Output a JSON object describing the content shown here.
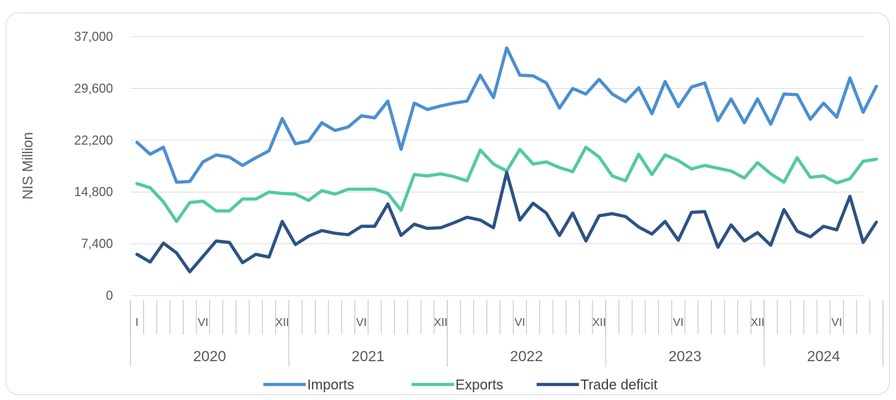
{
  "chart_data": {
    "type": "line",
    "ylabel": "NIS Million",
    "ylim": [
      0,
      37000
    ],
    "yticks": [
      "0",
      "7,400",
      "14,800",
      "22,200",
      "29,600",
      "37,000"
    ],
    "ytick_values": [
      0,
      7400,
      14800,
      22200,
      29600,
      37000
    ],
    "grid": "horizontal",
    "legend_position": "bottom",
    "years": [
      "2020",
      "2021",
      "2022",
      "2023",
      "2024"
    ],
    "months_per_year": [
      12,
      12,
      12,
      12,
      9
    ],
    "month_tick_labels": [
      {
        "index": 0,
        "label": "I"
      },
      {
        "index": 5,
        "label": "VI"
      },
      {
        "index": 11,
        "label": "XII"
      },
      {
        "index": 17,
        "label": "VI"
      },
      {
        "index": 23,
        "label": "XII"
      },
      {
        "index": 29,
        "label": "VI"
      },
      {
        "index": 35,
        "label": "XII"
      },
      {
        "index": 41,
        "label": "VI"
      },
      {
        "index": 47,
        "label": "XII"
      },
      {
        "index": 53,
        "label": "VI"
      }
    ],
    "series": [
      {
        "name": "Imports",
        "color": "#4a8fd0",
        "values": [
          21900,
          20200,
          21200,
          16200,
          16300,
          19100,
          20100,
          19800,
          18600,
          19700,
          20700,
          25300,
          21700,
          22100,
          24700,
          23600,
          24100,
          25700,
          25400,
          27800,
          20900,
          27500,
          26600,
          27100,
          27500,
          27800,
          31500,
          28300,
          35400,
          31500,
          31400,
          30400,
          26800,
          29600,
          28800,
          30900,
          28800,
          27700,
          29700,
          26000,
          30600,
          27000,
          29800,
          30400,
          25000,
          28100,
          24700,
          28100,
          24500,
          28800,
          28700,
          25200,
          27500,
          25500,
          31100,
          26200,
          29900
        ]
      },
      {
        "name": "Exports",
        "color": "#52c9a1",
        "values": [
          16000,
          15400,
          13400,
          10600,
          13300,
          13500,
          12100,
          12100,
          13800,
          13800,
          14800,
          14600,
          14500,
          13600,
          15000,
          14500,
          15200,
          15200,
          15200,
          14600,
          12200,
          17300,
          17100,
          17400,
          17000,
          16400,
          20800,
          18800,
          17800,
          20900,
          18800,
          19100,
          18300,
          17700,
          21200,
          19800,
          17100,
          16400,
          20200,
          17300,
          20100,
          19300,
          18100,
          18600,
          18200,
          17800,
          16800,
          19000,
          17400,
          16200,
          19700,
          16900,
          17100,
          16100,
          16700,
          19200,
          19500
        ]
      },
      {
        "name": "Trade deficit",
        "color": "#2c5283",
        "values": [
          5900,
          4800,
          7500,
          6100,
          3400,
          5600,
          7800,
          7600,
          4700,
          5900,
          5500,
          10600,
          7300,
          8500,
          9300,
          8900,
          8700,
          9900,
          9900,
          13100,
          8600,
          10200,
          9600,
          9700,
          10400,
          11200,
          10800,
          9700,
          17600,
          10800,
          13200,
          11800,
          8600,
          11800,
          7800,
          11400,
          11700,
          11300,
          9800,
          8800,
          10600,
          7900,
          11900,
          12000,
          6900,
          10100,
          7800,
          9000,
          7200,
          12300,
          9200,
          8400,
          9900,
          9400,
          14200,
          7600,
          10500
        ]
      }
    ]
  }
}
